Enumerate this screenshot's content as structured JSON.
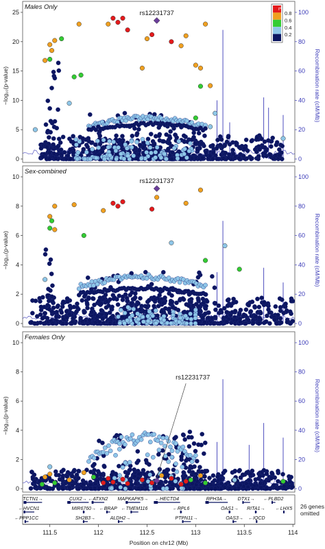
{
  "panels": [
    {
      "title": "Males Only",
      "ylim": [
        0,
        25
      ],
      "yticks": [
        0,
        5,
        10,
        15,
        20,
        25
      ],
      "snp_label": "rs12231737",
      "lead": {
        "x": 112.6,
        "y": 23.6
      },
      "label_leader": false,
      "show_legend": true,
      "clusters": [
        {
          "x0": 111.4,
          "x1": 113.9,
          "ymax": 4.0,
          "n": 520,
          "color": "navy"
        },
        {
          "x0": 111.9,
          "x1": 113.1,
          "ymax": 8.0,
          "n": 150,
          "color": "navy"
        },
        {
          "x0": 111.45,
          "x1": 111.6,
          "ymax": 16.5,
          "n": 35,
          "color": "navy"
        },
        {
          "x0": 111.75,
          "x1": 113.0,
          "ymax": 3.5,
          "n": 100,
          "color": "lightblue"
        }
      ],
      "arcs": [
        {
          "x0": 111.9,
          "x1": 113.1,
          "y": 5.5,
          "peak": 7.0,
          "n": 70,
          "color": "lightblue"
        },
        {
          "x0": 111.9,
          "x1": 113.1,
          "y": 5.0,
          "peak": 6.0,
          "n": 50,
          "color": "navy"
        }
      ],
      "highlights": [
        {
          "x": 112.15,
          "y": 24.0,
          "r2": "red"
        },
        {
          "x": 112.2,
          "y": 23.3,
          "r2": "red"
        },
        {
          "x": 112.25,
          "y": 24.0,
          "r2": "red"
        },
        {
          "x": 112.3,
          "y": 22.0,
          "r2": "red"
        },
        {
          "x": 112.55,
          "y": 21.2,
          "r2": "red"
        },
        {
          "x": 112.75,
          "y": 20.0,
          "r2": "red"
        },
        {
          "x": 111.55,
          "y": 20.2,
          "r2": "orange"
        },
        {
          "x": 111.5,
          "y": 19.5,
          "r2": "orange"
        },
        {
          "x": 111.52,
          "y": 18.5,
          "r2": "orange"
        },
        {
          "x": 111.8,
          "y": 23.0,
          "r2": "orange"
        },
        {
          "x": 112.1,
          "y": 23.0,
          "r2": "orange"
        },
        {
          "x": 112.5,
          "y": 20.5,
          "r2": "orange"
        },
        {
          "x": 112.9,
          "y": 21.0,
          "r2": "orange"
        },
        {
          "x": 113.1,
          "y": 23.0,
          "r2": "orange"
        },
        {
          "x": 112.85,
          "y": 19.3,
          "r2": "orange"
        },
        {
          "x": 113.0,
          "y": 16.0,
          "r2": "orange"
        },
        {
          "x": 113.05,
          "y": 15.5,
          "r2": "orange"
        },
        {
          "x": 112.45,
          "y": 15.5,
          "r2": "orange"
        },
        {
          "x": 113.15,
          "y": 12.5,
          "r2": "orange"
        },
        {
          "x": 111.45,
          "y": 16.8,
          "r2": "orange"
        },
        {
          "x": 111.62,
          "y": 20.5,
          "r2": "green"
        },
        {
          "x": 111.5,
          "y": 17.0,
          "r2": "green"
        },
        {
          "x": 111.82,
          "y": 14.3,
          "r2": "green"
        },
        {
          "x": 111.75,
          "y": 14.0,
          "r2": "green"
        },
        {
          "x": 113.05,
          "y": 12.4,
          "r2": "green"
        },
        {
          "x": 113.0,
          "y": 7.0,
          "r2": "green"
        },
        {
          "x": 111.7,
          "y": 9.5,
          "r2": "lightblue"
        },
        {
          "x": 113.15,
          "y": 5.5,
          "r2": "lightblue"
        },
        {
          "x": 113.2,
          "y": 7.8,
          "r2": "lightblue"
        },
        {
          "x": 113.9,
          "y": 3.5,
          "r2": "lightblue"
        },
        {
          "x": 111.35,
          "y": 5.0,
          "r2": "lightblue"
        }
      ],
      "spikes": [
        {
          "x": 113.28,
          "rate": 88
        },
        {
          "x": 113.22,
          "rate": 40
        },
        {
          "x": 113.35,
          "rate": 25
        },
        {
          "x": 113.7,
          "rate": 42
        },
        {
          "x": 113.75,
          "rate": 35
        },
        {
          "x": 113.9,
          "rate": 30
        }
      ]
    },
    {
      "title": "Sex-combined",
      "ylim": [
        0,
        10
      ],
      "yticks": [
        0,
        2,
        4,
        6,
        8,
        10
      ],
      "snp_label": "rs12231737",
      "lead": {
        "x": 112.6,
        "y": 9.2
      },
      "label_leader": false,
      "show_legend": false,
      "clusters": [
        {
          "x0": 111.3,
          "x1": 114.0,
          "ymax": 1.8,
          "n": 600,
          "color": "navy"
        },
        {
          "x0": 111.8,
          "x1": 113.2,
          "ymax": 3.5,
          "n": 200,
          "color": "navy"
        },
        {
          "x0": 111.45,
          "x1": 111.55,
          "ymax": 5.5,
          "n": 30,
          "color": "navy"
        },
        {
          "x0": 112.2,
          "x1": 113.0,
          "ymax": 1.2,
          "n": 90,
          "color": "lightblue"
        }
      ],
      "arcs": [
        {
          "x0": 111.8,
          "x1": 113.1,
          "y": 2.5,
          "peak": 3.2,
          "n": 70,
          "color": "lightblue"
        },
        {
          "x0": 111.8,
          "x1": 113.1,
          "y": 2.0,
          "peak": 2.4,
          "n": 60,
          "color": "navy"
        }
      ],
      "highlights": [
        {
          "x": 112.15,
          "y": 8.2,
          "r2": "red"
        },
        {
          "x": 112.2,
          "y": 8.0,
          "r2": "red"
        },
        {
          "x": 112.25,
          "y": 8.3,
          "r2": "red"
        },
        {
          "x": 112.55,
          "y": 7.8,
          "r2": "red"
        },
        {
          "x": 112.6,
          "y": 8.6,
          "r2": "orange"
        },
        {
          "x": 112.05,
          "y": 7.7,
          "r2": "orange"
        },
        {
          "x": 111.55,
          "y": 8.0,
          "r2": "orange"
        },
        {
          "x": 111.5,
          "y": 7.3,
          "r2": "orange"
        },
        {
          "x": 111.55,
          "y": 6.4,
          "r2": "orange"
        },
        {
          "x": 111.75,
          "y": 8.1,
          "r2": "orange"
        },
        {
          "x": 112.9,
          "y": 8.2,
          "r2": "orange"
        },
        {
          "x": 113.05,
          "y": 9.1,
          "r2": "orange"
        },
        {
          "x": 111.52,
          "y": 7.0,
          "r2": "green"
        },
        {
          "x": 111.5,
          "y": 6.5,
          "r2": "green"
        },
        {
          "x": 111.85,
          "y": 6.0,
          "r2": "green"
        },
        {
          "x": 113.1,
          "y": 4.3,
          "r2": "green"
        },
        {
          "x": 113.45,
          "y": 3.7,
          "r2": "green"
        },
        {
          "x": 112.75,
          "y": 5.5,
          "r2": "lightblue"
        },
        {
          "x": 113.3,
          "y": 5.3,
          "r2": "lightblue"
        },
        {
          "x": 111.45,
          "y": 3.0,
          "r2": "lightblue"
        }
      ],
      "spikes": [
        {
          "x": 113.28,
          "rate": 70
        },
        {
          "x": 113.22,
          "rate": 35
        },
        {
          "x": 113.7,
          "rate": 38
        },
        {
          "x": 113.9,
          "rate": 28
        }
      ]
    },
    {
      "title": "Females Only",
      "ylim": [
        0,
        10
      ],
      "yticks": [
        0,
        2,
        4,
        6,
        8,
        10
      ],
      "snp_label": "rs12231737",
      "lead": {
        "x": 112.6,
        "y": 0.55
      },
      "label_leader": true,
      "show_legend": false,
      "clusters": [
        {
          "x0": 111.3,
          "x1": 114.0,
          "ymax": 1.3,
          "n": 600,
          "color": "navy"
        },
        {
          "x0": 111.9,
          "x1": 113.1,
          "ymax": 4.0,
          "n": 180,
          "color": "navy"
        },
        {
          "x0": 112.1,
          "x1": 112.9,
          "ymax": 3.5,
          "n": 40,
          "color": "lightblue"
        }
      ],
      "arcs": [
        {
          "x0": 111.9,
          "x1": 113.0,
          "y": 2.0,
          "peak": 3.5,
          "n": 60,
          "color": "lightblue"
        }
      ],
      "highlights": [
        {
          "x": 112.05,
          "y": 0.4,
          "r2": "red"
        },
        {
          "x": 112.1,
          "y": 0.7,
          "r2": "red"
        },
        {
          "x": 112.15,
          "y": 0.45,
          "r2": "red"
        },
        {
          "x": 112.25,
          "y": 0.65,
          "r2": "red"
        },
        {
          "x": 112.3,
          "y": 0.35,
          "r2": "red"
        },
        {
          "x": 112.45,
          "y": 0.6,
          "r2": "red"
        },
        {
          "x": 112.55,
          "y": 0.4,
          "r2": "red"
        },
        {
          "x": 112.75,
          "y": 0.7,
          "r2": "red"
        },
        {
          "x": 112.9,
          "y": 0.5,
          "r2": "red"
        },
        {
          "x": 112.85,
          "y": 0.3,
          "r2": "red"
        },
        {
          "x": 111.45,
          "y": 0.8,
          "r2": "orange"
        },
        {
          "x": 111.5,
          "y": 1.0,
          "r2": "orange"
        },
        {
          "x": 111.7,
          "y": 0.6,
          "r2": "orange"
        },
        {
          "x": 111.85,
          "y": 1.1,
          "r2": "orange"
        },
        {
          "x": 112.65,
          "y": 0.9,
          "r2": "orange"
        },
        {
          "x": 113.05,
          "y": 0.9,
          "r2": "orange"
        },
        {
          "x": 111.42,
          "y": 0.3,
          "r2": "green"
        },
        {
          "x": 111.55,
          "y": 0.4,
          "r2": "green"
        },
        {
          "x": 111.95,
          "y": 0.8,
          "r2": "green"
        },
        {
          "x": 112.95,
          "y": 0.6,
          "r2": "green"
        },
        {
          "x": 113.1,
          "y": 0.4,
          "r2": "green"
        },
        {
          "x": 113.9,
          "y": 0.5,
          "r2": "green"
        },
        {
          "x": 113.4,
          "y": 0.6,
          "r2": "lightblue"
        },
        {
          "x": 111.5,
          "y": 1.5,
          "r2": "lightblue"
        }
      ],
      "spikes": [
        {
          "x": 113.28,
          "rate": 75
        },
        {
          "x": 113.22,
          "rate": 32
        },
        {
          "x": 113.55,
          "rate": 30
        },
        {
          "x": 113.7,
          "rate": 45
        },
        {
          "x": 113.9,
          "rate": 35
        }
      ]
    }
  ],
  "legend": {
    "title": "r²",
    "labels": [
      "0.8",
      "0.6",
      "0.4",
      "0.2"
    ]
  },
  "colors": {
    "red": "#e41a1c",
    "orange": "#f0a020",
    "green": "#33cc33",
    "lightblue": "#8ec6e8",
    "navy": "#0b1560",
    "lead": "#6a3d9a",
    "spike": "#3a3ab8",
    "axis_right": "#3a3ab8",
    "gene": "#0b1560"
  },
  "y_left_label": "−log₁₀(p-value)",
  "y_right_label": "Recombination rate (cM/Mb)",
  "y_right_ticks": [
    0,
    20,
    40,
    60,
    80,
    100
  ],
  "x_label": "Position on chr12 (Mb)",
  "xlim": [
    111.22,
    114.02
  ],
  "x_ticks": [
    111.5,
    112,
    112.5,
    113,
    113.5,
    114
  ],
  "x_tick_labels": [
    "111.5",
    "112",
    "112.5",
    "113",
    "113.5",
    "114"
  ],
  "genes_omitted_note": "26 genes\nomitted",
  "genes": [
    {
      "name": "TCTN1",
      "start": 111.23,
      "end": 111.42,
      "row": 0,
      "strand": "+"
    },
    {
      "name": "CUX2",
      "start": 111.68,
      "end": 111.9,
      "row": 0,
      "strand": "+"
    },
    {
      "name": "ATXN2",
      "start": 111.93,
      "end": 112.06,
      "row": 0,
      "strand": "-"
    },
    {
      "name": "MAPKAPK5",
      "start": 112.28,
      "end": 112.43,
      "row": 0,
      "strand": "+"
    },
    {
      "name": "HECTD4",
      "start": 112.57,
      "end": 112.84,
      "row": 0,
      "strand": "-"
    },
    {
      "name": "RPH3A",
      "start": 113.1,
      "end": 113.33,
      "row": 0,
      "strand": "+"
    },
    {
      "name": "DTX1",
      "start": 113.48,
      "end": 113.56,
      "row": 0,
      "strand": "+"
    },
    {
      "name": "PLBD2",
      "start": 113.78,
      "end": 113.82,
      "row": 0,
      "strand": "-"
    },
    {
      "name": "HVCN1",
      "start": 111.23,
      "end": 111.34,
      "row": 1,
      "strand": "-"
    },
    {
      "name": "MIR6760",
      "start": 111.84,
      "end": 111.86,
      "row": 1,
      "strand": "+"
    },
    {
      "name": "BRAP",
      "start": 112.08,
      "end": 112.12,
      "row": 1,
      "strand": "-"
    },
    {
      "name": "TMEM116",
      "start": 112.33,
      "end": 112.41,
      "row": 1,
      "strand": "-"
    },
    {
      "name": "RPL6",
      "start": 112.84,
      "end": 112.86,
      "row": 1,
      "strand": "-"
    },
    {
      "name": "OAS1",
      "start": 113.34,
      "end": 113.36,
      "row": 1,
      "strand": "+"
    },
    {
      "name": "RITA1",
      "start": 113.61,
      "end": 113.63,
      "row": 1,
      "strand": "+"
    },
    {
      "name": "LHX5",
      "start": 113.9,
      "end": 113.91,
      "row": 1,
      "strand": "-"
    },
    {
      "name": "PPP1CC",
      "start": 111.24,
      "end": 111.28,
      "row": 2,
      "strand": "-"
    },
    {
      "name": "SH2B3",
      "start": 111.84,
      "end": 111.89,
      "row": 2,
      "strand": "+"
    },
    {
      "name": "ALDH2",
      "start": 112.2,
      "end": 112.25,
      "row": 2,
      "strand": "+"
    },
    {
      "name": "PTPN11",
      "start": 112.86,
      "end": 112.95,
      "row": 2,
      "strand": "+"
    },
    {
      "name": "OAS3",
      "start": 113.38,
      "end": 113.42,
      "row": 2,
      "strand": "+"
    },
    {
      "name": "IQCD",
      "start": 113.62,
      "end": 113.63,
      "row": 2,
      "strand": "-"
    }
  ]
}
